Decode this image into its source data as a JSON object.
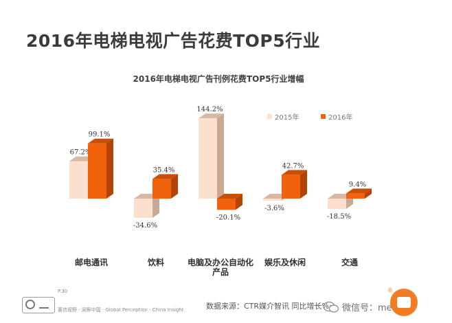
{
  "page": {
    "title": "2016年电梯电视广告花费TOP5行业"
  },
  "chart_data": {
    "type": "bar",
    "title": "2016年电梯电视广告刊例花费TOP5行业增幅",
    "categories": [
      "邮电通讯",
      "饮料",
      "电脑及办公自动化产品",
      "娱乐及休闲",
      "交通"
    ],
    "category_lines": [
      [
        "邮电通讯"
      ],
      [
        "饮料"
      ],
      [
        "电脑及办公自动化",
        "产品"
      ],
      [
        "娱乐及休闲"
      ],
      [
        "交通"
      ]
    ],
    "series": [
      {
        "name": "2015年",
        "values": [
          67.2,
          -34.6,
          144.2,
          -3.6,
          -18.5
        ],
        "labels": [
          "67.2%",
          "-34.6%",
          "144.2%",
          "-3.6%",
          "-18.5%"
        ],
        "color": "#fbe0cd",
        "side_color": "#c9a995",
        "top_color": "#d8b8a4"
      },
      {
        "name": "2016年",
        "values": [
          99.1,
          35.4,
          -20.1,
          42.7,
          9.4
        ],
        "labels": [
          "99.1%",
          "35.4%",
          "-20.1%",
          "42.7%",
          "9.4%"
        ],
        "color": "#f2620a",
        "side_color": "#b34406",
        "top_color": "#c9500a"
      }
    ],
    "ylim": [
      -40,
      150
    ],
    "grid": false,
    "legend_position": "top-right",
    "bar_style": "3d"
  },
  "footer": {
    "page_number": "P.30",
    "note": "置信视野 · 洞察中国 · Global Perception · China Insight",
    "source": "数据来源：CTR媒介智讯   同比增长%",
    "wechat": "微信号：mediam"
  }
}
